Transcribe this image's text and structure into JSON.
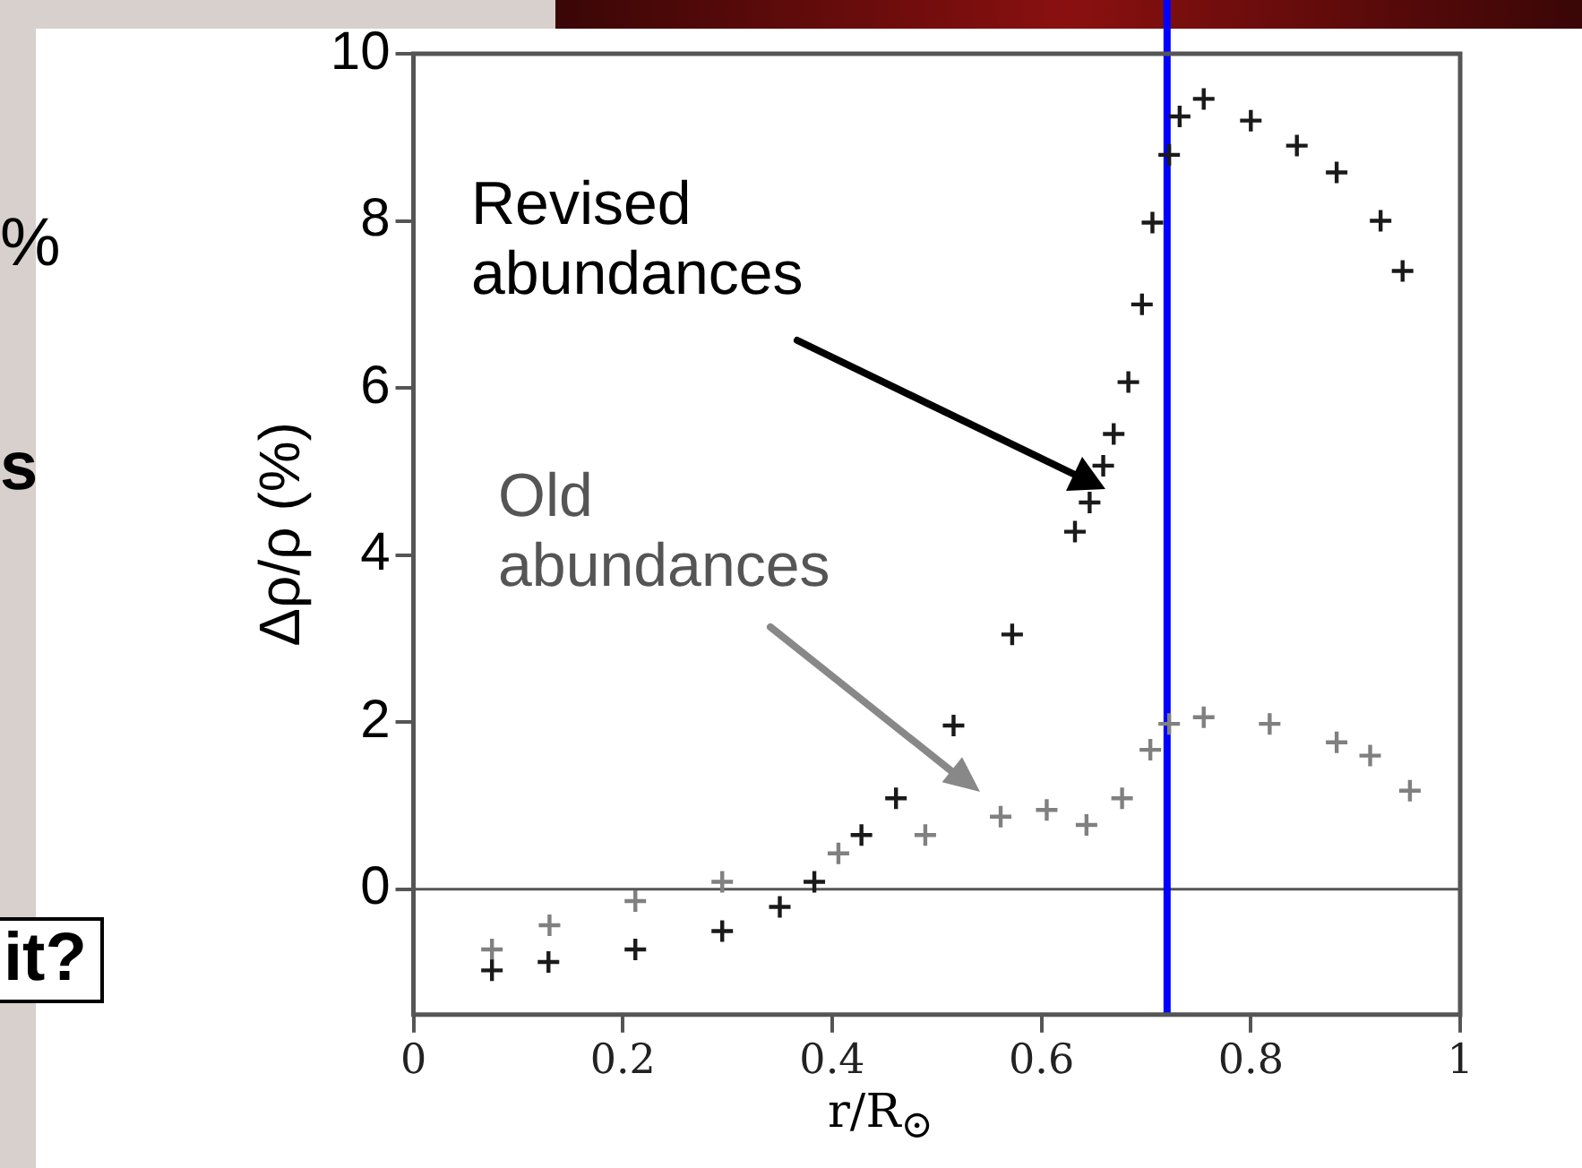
{
  "chart_data": {
    "type": "scatter",
    "xlabel": "r/R$_{⊙}$",
    "ylabel": "Δρ/ρ (%)",
    "series": [
      {
        "color": "#1a1a1a",
        "x": [
          0.075,
          0.129,
          0.212,
          0.295,
          0.35,
          0.383,
          0.428,
          0.461,
          0.516,
          0.572,
          0.632,
          0.646,
          0.659,
          0.669,
          0.683,
          0.696,
          0.706,
          0.722,
          0.732,
          0.755,
          0.8,
          0.844,
          0.882,
          0.924,
          0.945
        ],
        "values": [
          -0.97,
          -0.87,
          -0.72,
          -0.5,
          -0.21,
          0.09,
          0.65,
          1.09,
          1.96,
          3.05,
          4.28,
          4.63,
          5.07,
          5.45,
          6.07,
          7.0,
          7.98,
          8.79,
          9.25,
          9.46,
          9.2,
          8.9,
          8.58,
          8.0,
          7.4
        ]
      },
      {
        "color": "#808080",
        "x": [
          0.075,
          0.13,
          0.212,
          0.295,
          0.406,
          0.489,
          0.561,
          0.605,
          0.643,
          0.677,
          0.704,
          0.722,
          0.755,
          0.818,
          0.882,
          0.914,
          0.952
        ],
        "values": [
          -0.72,
          -0.43,
          -0.14,
          0.09,
          0.43,
          0.65,
          0.87,
          0.95,
          0.77,
          1.09,
          1.67,
          1.98,
          2.06,
          1.98,
          1.76,
          1.6,
          1.18
        ]
      }
    ],
    "marker": "cross",
    "legend": false,
    "grid": false,
    "xlim": [
      0,
      1
    ],
    "xticks": [
      0,
      0.2,
      0.4,
      0.6,
      0.8,
      1
    ],
    "ylim": [
      -1.5,
      10
    ],
    "yticks": [
      0,
      2,
      4,
      6,
      8,
      10
    ],
    "ref_lines": [
      {
        "axis": "y",
        "value": 0,
        "color": "#555555"
      },
      {
        "axis": "x",
        "value": 0.72,
        "color": "#0000ff"
      }
    ],
    "annotations": [
      "Revised abundances",
      "Old abundances",
      "%",
      "s",
      "it?"
    ]
  }
}
